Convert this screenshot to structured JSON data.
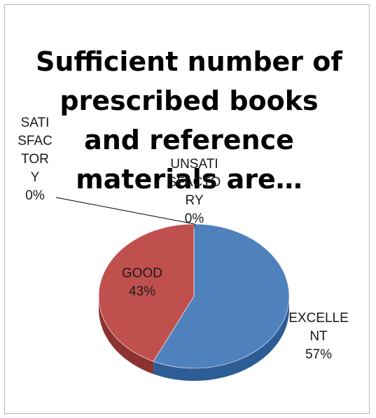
{
  "chart_data": {
    "type": "pie",
    "title": [
      "Sufficient number of",
      "prescribed books",
      "and reference",
      "materials are…"
    ],
    "slices": [
      {
        "label": [
          "EXCELLE",
          "NT"
        ],
        "value": 57,
        "pct": "57%",
        "color": "#4f81bd",
        "side": "#2e5c94"
      },
      {
        "label": [
          "GOOD"
        ],
        "value": 43,
        "pct": "43%",
        "color": "#c0504d",
        "side": "#8c3230"
      },
      {
        "label": [
          "SATI",
          "SFAC",
          "TOR",
          "Y"
        ],
        "value": 0,
        "pct": "0%",
        "color": "#9bbb59",
        "side": "#6f8a3c"
      },
      {
        "label": [
          "UNSATI",
          "SFACTO",
          "RY"
        ],
        "value": 0,
        "pct": "0%",
        "color": "#8064a2",
        "side": "#5c4778"
      }
    ]
  }
}
